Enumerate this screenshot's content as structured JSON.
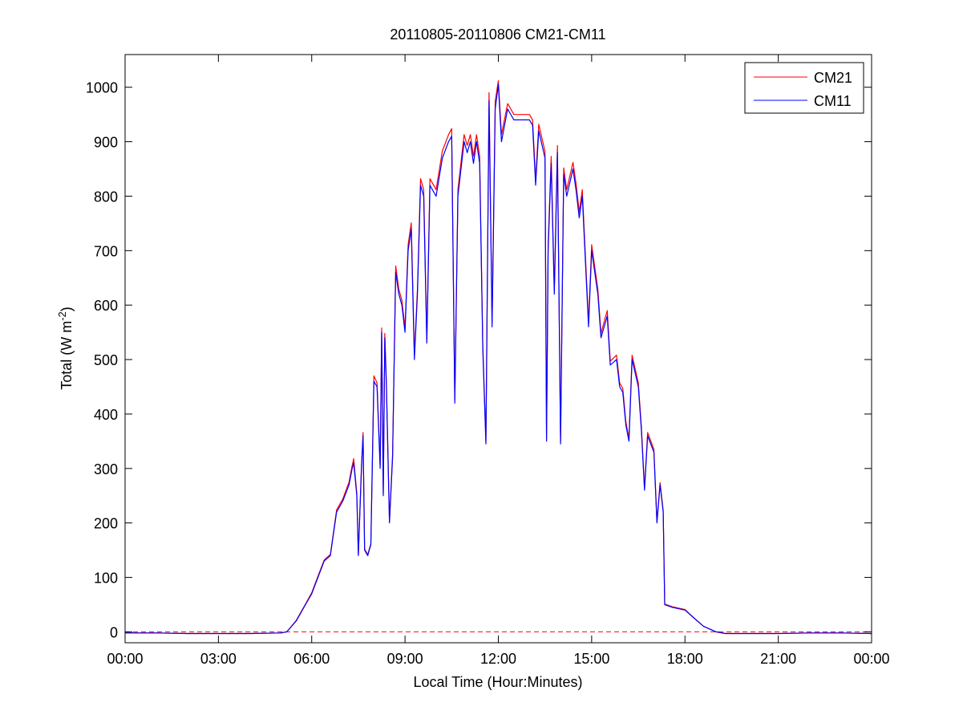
{
  "chart_data": {
    "type": "line",
    "title": "20110805-20110806 CM21-CM11",
    "xlabel": "Local Time (Hour:Minutes)",
    "ylabel": {
      "text": "Total (W m",
      "superscript": "-2",
      "suffix": ")"
    },
    "xlim": [
      0,
      24
    ],
    "ylim": [
      -20,
      1060
    ],
    "x_unit": "hours",
    "xticks": [
      0,
      3,
      6,
      9,
      12,
      15,
      18,
      21,
      24
    ],
    "xtick_labels": [
      "00:00",
      "03:00",
      "06:00",
      "09:00",
      "12:00",
      "15:00",
      "18:00",
      "21:00",
      "00:00"
    ],
    "yticks": [
      0,
      100,
      200,
      300,
      400,
      500,
      600,
      700,
      800,
      900,
      1000
    ],
    "ytick_labels": [
      "0",
      "100",
      "200",
      "300",
      "400",
      "500",
      "600",
      "700",
      "800",
      "900",
      "1000"
    ],
    "grid": false,
    "legend": {
      "position": "top-right",
      "entries": [
        "CM21",
        "CM11"
      ]
    },
    "series": [
      {
        "name": "CM21",
        "color": "#ff0000"
      },
      {
        "name": "CM11",
        "color": "#0000ff"
      }
    ],
    "points_columns": [
      "hour",
      "CM11",
      "CM21"
    ],
    "points": [
      [
        0,
        -2,
        -2
      ],
      [
        1,
        -2,
        -2
      ],
      [
        2,
        -3,
        -3
      ],
      [
        3,
        -3,
        -3
      ],
      [
        4,
        -3,
        -3
      ],
      [
        5,
        -2,
        -2
      ],
      [
        5.2,
        0,
        0
      ],
      [
        5.5,
        20,
        21
      ],
      [
        5.8,
        50,
        51
      ],
      [
        6.0,
        70,
        72
      ],
      [
        6.2,
        100,
        102
      ],
      [
        6.4,
        130,
        132
      ],
      [
        6.6,
        140,
        142
      ],
      [
        6.8,
        220,
        224
      ],
      [
        7.0,
        240,
        244
      ],
      [
        7.2,
        270,
        275
      ],
      [
        7.3,
        300,
        305
      ],
      [
        7.35,
        310,
        318
      ],
      [
        7.45,
        250,
        254
      ],
      [
        7.5,
        140,
        142
      ],
      [
        7.6,
        300,
        305
      ],
      [
        7.65,
        360,
        366
      ],
      [
        7.7,
        150,
        152
      ],
      [
        7.8,
        140,
        142
      ],
      [
        7.9,
        160,
        162
      ],
      [
        8.0,
        460,
        470
      ],
      [
        8.1,
        450,
        457
      ],
      [
        8.2,
        300,
        305
      ],
      [
        8.25,
        550,
        558
      ],
      [
        8.3,
        250,
        254
      ],
      [
        8.35,
        540,
        548
      ],
      [
        8.4,
        450,
        457
      ],
      [
        8.5,
        200,
        203
      ],
      [
        8.6,
        320,
        325
      ],
      [
        8.7,
        660,
        672
      ],
      [
        8.8,
        620,
        629
      ],
      [
        8.9,
        600,
        609
      ],
      [
        9.0,
        550,
        558
      ],
      [
        9.1,
        700,
        711
      ],
      [
        9.2,
        740,
        751
      ],
      [
        9.3,
        500,
        508
      ],
      [
        9.4,
        620,
        629
      ],
      [
        9.5,
        820,
        832
      ],
      [
        9.6,
        800,
        812
      ],
      [
        9.7,
        530,
        538
      ],
      [
        9.8,
        820,
        832
      ],
      [
        10.0,
        800,
        812
      ],
      [
        10.2,
        870,
        883
      ],
      [
        10.4,
        900,
        913
      ],
      [
        10.5,
        910,
        924
      ],
      [
        10.6,
        420,
        426
      ],
      [
        10.7,
        800,
        812
      ],
      [
        10.9,
        900,
        913
      ],
      [
        11.0,
        880,
        893
      ],
      [
        11.1,
        900,
        913
      ],
      [
        11.2,
        860,
        873
      ],
      [
        11.3,
        900,
        913
      ],
      [
        11.4,
        860,
        873
      ],
      [
        11.5,
        520,
        528
      ],
      [
        11.6,
        345,
        350
      ],
      [
        11.7,
        975,
        990
      ],
      [
        11.8,
        560,
        568
      ],
      [
        11.9,
        960,
        974
      ],
      [
        12.0,
        1005,
        1012
      ],
      [
        12.1,
        900,
        913
      ],
      [
        12.3,
        960,
        970
      ],
      [
        12.5,
        940,
        950
      ],
      [
        12.7,
        940,
        950
      ],
      [
        13.0,
        940,
        950
      ],
      [
        13.1,
        930,
        940
      ],
      [
        13.2,
        820,
        830
      ],
      [
        13.3,
        920,
        932
      ],
      [
        13.5,
        870,
        882
      ],
      [
        13.55,
        350,
        355
      ],
      [
        13.6,
        700,
        711
      ],
      [
        13.7,
        860,
        873
      ],
      [
        13.8,
        620,
        629
      ],
      [
        13.9,
        880,
        893
      ],
      [
        14.0,
        345,
        350
      ],
      [
        14.1,
        840,
        852
      ],
      [
        14.2,
        800,
        812
      ],
      [
        14.4,
        850,
        862
      ],
      [
        14.5,
        810,
        822
      ],
      [
        14.6,
        760,
        771
      ],
      [
        14.7,
        800,
        812
      ],
      [
        14.9,
        560,
        568
      ],
      [
        15.0,
        700,
        711
      ],
      [
        15.2,
        620,
        629
      ],
      [
        15.3,
        540,
        548
      ],
      [
        15.5,
        580,
        590
      ],
      [
        15.6,
        490,
        497
      ],
      [
        15.8,
        500,
        508
      ],
      [
        15.9,
        450,
        457
      ],
      [
        16.0,
        440,
        447
      ],
      [
        16.1,
        380,
        386
      ],
      [
        16.2,
        350,
        355
      ],
      [
        16.3,
        500,
        508
      ],
      [
        16.5,
        450,
        457
      ],
      [
        16.6,
        370,
        376
      ],
      [
        16.7,
        260,
        264
      ],
      [
        16.8,
        360,
        366
      ],
      [
        17.0,
        330,
        335
      ],
      [
        17.1,
        200,
        203
      ],
      [
        17.2,
        270,
        274
      ],
      [
        17.3,
        220,
        223
      ],
      [
        17.35,
        50,
        51
      ],
      [
        17.6,
        45,
        46
      ],
      [
        18.0,
        40,
        41
      ],
      [
        18.3,
        25,
        25
      ],
      [
        18.6,
        10,
        10
      ],
      [
        19.0,
        0,
        0
      ],
      [
        19.3,
        -3,
        -3
      ],
      [
        21,
        -3,
        -3
      ],
      [
        22,
        -2,
        -2
      ],
      [
        23,
        -2,
        -2
      ],
      [
        24,
        -3,
        -3
      ]
    ],
    "reference_line": {
      "y": 0,
      "style": "dashed",
      "color": "#ff0000"
    }
  }
}
